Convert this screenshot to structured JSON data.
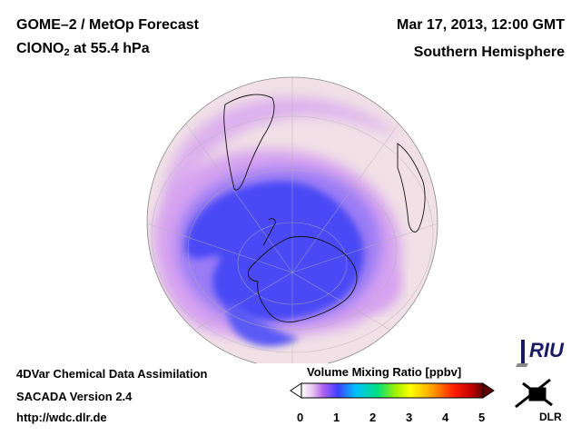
{
  "header": {
    "title_line1": "GOME–2 / MetOp Forecast",
    "title_species_main": "ClONO",
    "title_species_sub": "2",
    "title_level": " at 55.4 hPa",
    "date": "Mar 17, 2013, 12:00 GMT",
    "region": "Southern Hemisphere"
  },
  "footer": {
    "line1": "4DVar Chemical Data Assimilation",
    "line2": "SACADA Version 2.4",
    "line3": "http://wdc.dlr.de"
  },
  "colorbar": {
    "title": "Volume Mixing Ratio [ppbv]",
    "ticks": [
      "0",
      "1",
      "2",
      "3",
      "4",
      "5"
    ],
    "colors": [
      "#ffffff",
      "#e8c8f0",
      "#b060f0",
      "#4040ff",
      "#00c0ff",
      "#00e080",
      "#a0f000",
      "#ffff00",
      "#ffa000",
      "#ff2000",
      "#c00000",
      "#600000"
    ]
  },
  "logos": {
    "riu_text": "RIU",
    "dlr_text": "DLR"
  },
  "map": {
    "projection": "orthographic",
    "hemisphere": "south",
    "background_color": "#f1e1e6",
    "polar_vortex_color": "#4a4af5",
    "collar_color": "#d8a8ef"
  }
}
